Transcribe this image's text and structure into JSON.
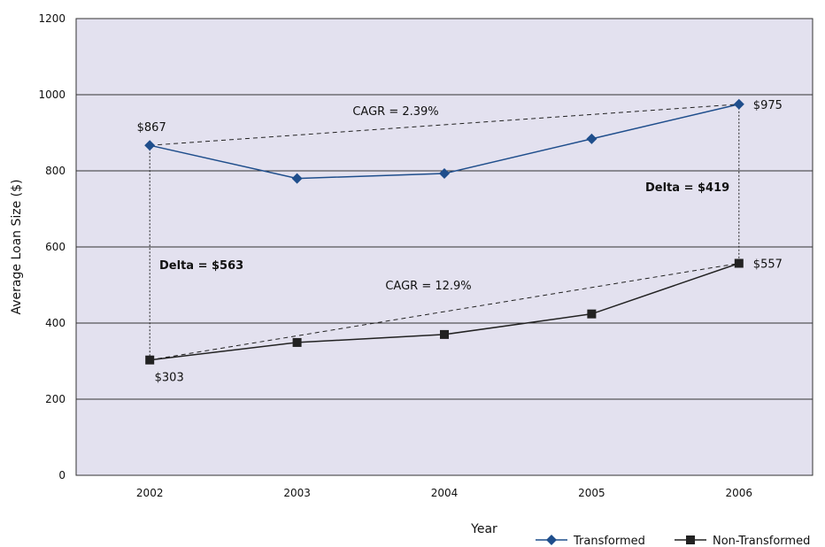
{
  "chart_data": {
    "type": "line",
    "title": "",
    "xlabel": "Year",
    "ylabel": "Average Loan Size ($)",
    "categories": [
      "2002",
      "2003",
      "2004",
      "2005",
      "2006"
    ],
    "ylim": [
      0,
      1200
    ],
    "yticks": [
      0,
      200,
      400,
      600,
      800,
      1000,
      1200
    ],
    "grid": true,
    "legend_position": "bottom-right",
    "series": [
      {
        "name": "Transformed",
        "values": [
          867,
          780,
          793,
          884,
          975
        ],
        "color": "#1f4e8c",
        "marker": "diamond"
      },
      {
        "name": "Non-Transformed",
        "values": [
          303,
          349,
          370,
          424,
          557
        ],
        "color": "#222222",
        "marker": "square"
      }
    ],
    "data_labels": [
      {
        "series": 0,
        "index": 0,
        "text": "$867"
      },
      {
        "series": 0,
        "index": 4,
        "text": "$975"
      },
      {
        "series": 1,
        "index": 0,
        "text": "$303"
      },
      {
        "series": 1,
        "index": 4,
        "text": "$557"
      }
    ],
    "annotations": {
      "cagr_transformed": "CAGR = 2.39%",
      "cagr_non_transformed": "CAGR = 12.9%",
      "delta_left": "Delta = $563",
      "delta_right": "Delta = $419"
    },
    "colors": {
      "plot_background": "#e3e1ef",
      "gridline": "#333333"
    }
  }
}
